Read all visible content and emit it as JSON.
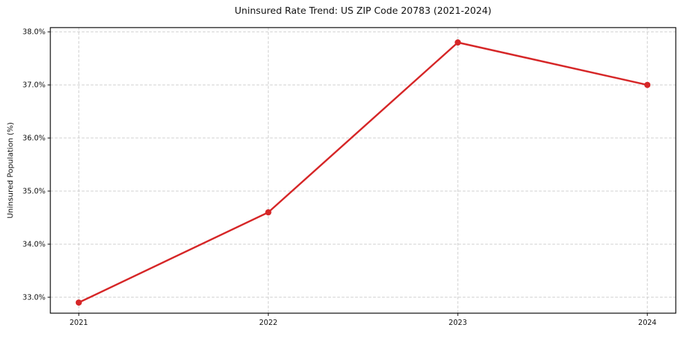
{
  "chart_data": {
    "type": "line",
    "title": "Uninsured Rate Trend: US ZIP Code 20783 (2021-2024)",
    "xlabel": "",
    "ylabel": "Uninsured Population (%)",
    "x": [
      2021,
      2022,
      2023,
      2024
    ],
    "series": [
      {
        "name": "Uninsured rate",
        "values": [
          32.9,
          34.6,
          37.8,
          37.0
        ],
        "color": "#d62728",
        "marker": "circle"
      }
    ],
    "xticks": [
      2021,
      2022,
      2023,
      2024
    ],
    "xtick_labels": [
      "2021",
      "2022",
      "2023",
      "2024"
    ],
    "yticks": [
      33.0,
      34.0,
      35.0,
      36.0,
      37.0,
      38.0
    ],
    "ytick_labels": [
      "33.0%",
      "34.0%",
      "35.0%",
      "36.0%",
      "37.0%",
      "38.0%"
    ],
    "xlim": [
      2020.85,
      2024.15
    ],
    "ylim": [
      32.7,
      38.08
    ],
    "grid": true,
    "grid_style": "dashed",
    "legend_position": "none",
    "colors": {
      "line": "#d62728",
      "grid": "#cccccc",
      "spine": "#000000",
      "text": "#111111",
      "background": "#ffffff"
    }
  }
}
